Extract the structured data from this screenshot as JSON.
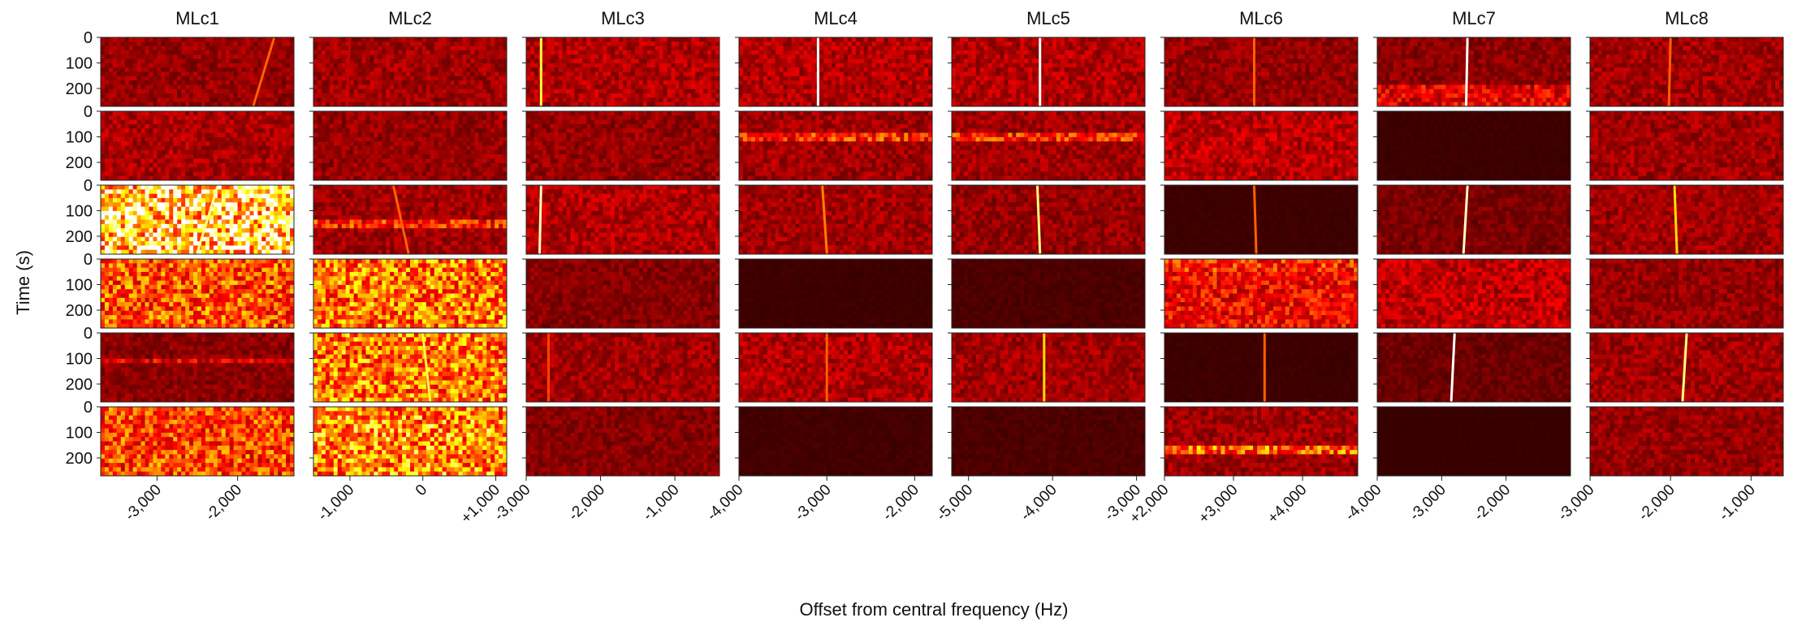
{
  "chart_data": {
    "type": "heatmap",
    "ylabel": "Time (s)",
    "xlabel": "Offset from central frequency (Hz)",
    "columns": [
      "MLc1",
      "MLc2",
      "MLc3",
      "MLc4",
      "MLc5",
      "MLc6",
      "MLc7",
      "MLc8"
    ],
    "y_ticks": [
      "0",
      "100",
      "200"
    ],
    "y_range": [
      0,
      270
    ],
    "x_axes": [
      {
        "range": [
          -3700,
          -1300
        ],
        "ticks": [
          -3000,
          -2000
        ],
        "tick_labels": [
          "-3,000",
          "-2,000"
        ]
      },
      {
        "range": [
          -1500,
          1150
        ],
        "ticks": [
          -1000,
          0,
          1000
        ],
        "tick_labels": [
          "-1,000",
          "0",
          "+1,000"
        ]
      },
      {
        "range": [
          -3000,
          -400
        ],
        "ticks": [
          -3000,
          -2000,
          -1000
        ],
        "tick_labels": [
          "-3,000",
          "-2,000",
          "-1,000"
        ]
      },
      {
        "range": [
          -4000,
          -1800
        ],
        "ticks": [
          -4000,
          -3000,
          -2000
        ],
        "tick_labels": [
          "-4,000",
          "-3,000",
          "-2,000"
        ]
      },
      {
        "range": [
          -5200,
          -2900
        ],
        "ticks": [
          -5000,
          -4000,
          -3000
        ],
        "tick_labels": [
          "-5,000",
          "-4,000",
          "-3,000"
        ]
      },
      {
        "range": [
          2000,
          4800
        ],
        "ticks": [
          2000,
          3000,
          4000
        ],
        "tick_labels": [
          "+2,000",
          "+3,000",
          "+4,000"
        ]
      },
      {
        "range": [
          -4000,
          -1000
        ],
        "ticks": [
          -4000,
          -3000,
          -2000
        ],
        "tick_labels": [
          "-4,000",
          "-3,000",
          "-2,000"
        ]
      },
      {
        "range": [
          -3000,
          -600
        ],
        "ticks": [
          -3000,
          -2000,
          -1000
        ],
        "tick_labels": [
          "-3,000",
          "-2,000",
          "-1,000"
        ]
      }
    ],
    "panels": [
      [
        {
          "bg": 0.2,
          "line": [
            -1550,
            -1800
          ],
          "li": 0.55
        },
        {
          "bg": 0.22,
          "line": [
            -1000,
            -1050
          ],
          "li": 0.3
        },
        {
          "bg": 0.25,
          "line": [
            -2800,
            -2800
          ],
          "li": 0.85
        },
        {
          "bg": 0.25,
          "line": [
            -3100,
            -3100
          ],
          "li": 1.0
        },
        {
          "bg": 0.25,
          "line": [
            -4150,
            -4150
          ],
          "li": 1.0
        },
        {
          "bg": 0.2,
          "line": [
            3300,
            3300
          ],
          "li": 0.55
        },
        {
          "bg": 0.18,
          "line": [
            -2600,
            -2620
          ],
          "li": 1.0,
          "band": [
            190,
            270
          ],
          "bi": 0.35
        },
        {
          "bg": 0.22,
          "line": [
            -2000,
            -2020
          ],
          "li": 0.55
        }
      ],
      [
        {
          "bg": 0.24
        },
        {
          "bg": 0.2
        },
        {
          "bg": 0.2
        },
        {
          "bg": 0.22,
          "band": [
            90,
            110
          ],
          "bi": 0.45
        },
        {
          "bg": 0.22,
          "band": [
            90,
            110
          ],
          "bi": 0.45
        },
        {
          "bg": 0.27
        },
        {
          "bg": 0.03
        },
        {
          "bg": 0.22
        }
      ],
      [
        {
          "bg": 0.78,
          "line": [
            -2250,
            -2500
          ],
          "li": 0.9
        },
        {
          "bg": 0.22,
          "line": [
            -400,
            -200
          ],
          "li": 0.55,
          "band": [
            140,
            165
          ],
          "bi": 0.45
        },
        {
          "bg": 0.25,
          "line": [
            -2800,
            -2820
          ],
          "li": 0.95
        },
        {
          "bg": 0.22,
          "line": [
            -3050,
            -3000
          ],
          "li": 0.6
        },
        {
          "bg": 0.2,
          "line": [
            -4180,
            -4150
          ],
          "li": 0.9
        },
        {
          "bg": 0.03,
          "line": [
            3300,
            3330
          ],
          "li": 0.55
        },
        {
          "bg": 0.15,
          "line": [
            -2600,
            -2660
          ],
          "li": 0.95
        },
        {
          "bg": 0.22,
          "line": [
            -1950,
            -1920
          ],
          "li": 0.75
        }
      ],
      [
        {
          "bg": 0.52
        },
        {
          "bg": 0.58
        },
        {
          "bg": 0.17
        },
        {
          "bg": 0.03
        },
        {
          "bg": 0.06
        },
        {
          "bg": 0.38,
          "band": [
            5,
            45
          ],
          "bi": 0.45
        },
        {
          "bg": 0.28
        },
        {
          "bg": 0.2
        }
      ],
      [
        {
          "bg": 0.18,
          "band": [
            95,
            110
          ],
          "bi": 0.35
        },
        {
          "bg": 0.58,
          "line": [
            0,
            100
          ],
          "li": 0.85
        },
        {
          "bg": 0.22,
          "line": [
            -2700,
            -2700
          ],
          "li": 0.5
        },
        {
          "bg": 0.25,
          "line": [
            -3000,
            -3000
          ],
          "li": 0.55
        },
        {
          "bg": 0.22,
          "line": [
            -4100,
            -4100
          ],
          "li": 0.75
        },
        {
          "bg": 0.03,
          "line": [
            3450,
            3450
          ],
          "li": 0.55
        },
        {
          "bg": 0.12,
          "line": [
            -2800,
            -2850
          ],
          "li": 1.0
        },
        {
          "bg": 0.22,
          "line": [
            -1800,
            -1850
          ],
          "li": 0.9
        }
      ],
      [
        {
          "bg": 0.5
        },
        {
          "bg": 0.62
        },
        {
          "bg": 0.17
        },
        {
          "bg": 0.04
        },
        {
          "bg": 0.06
        },
        {
          "bg": 0.22,
          "band": [
            160,
            190
          ],
          "bi": 0.55
        },
        {
          "bg": 0.02
        },
        {
          "bg": 0.2
        }
      ]
    ]
  }
}
